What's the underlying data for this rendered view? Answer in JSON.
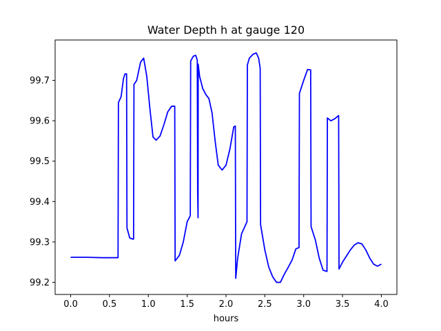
{
  "chart_data": {
    "type": "line",
    "title": "Water Depth h at gauge 120",
    "xlabel": "hours",
    "ylabel": "",
    "xlim": [
      -0.2,
      4.2
    ],
    "ylim": [
      99.17,
      99.8
    ],
    "xticks": [
      0.0,
      0.5,
      1.0,
      1.5,
      2.0,
      2.5,
      3.0,
      3.5,
      4.0
    ],
    "xtick_labels": [
      "0.0",
      "0.5",
      "1.0",
      "1.5",
      "2.0",
      "2.5",
      "3.0",
      "3.5",
      "4.0"
    ],
    "yticks": [
      99.2,
      99.3,
      99.4,
      99.5,
      99.6,
      99.7
    ],
    "ytick_labels": [
      "99.2",
      "99.3",
      "99.4",
      "99.5",
      "99.6",
      "99.7"
    ],
    "grid": false,
    "legend": "none",
    "series": [
      {
        "color": "#0000ff",
        "x": [
          0.0,
          0.2,
          0.4,
          0.61,
          0.615,
          0.65,
          0.68,
          0.7,
          0.72,
          0.725,
          0.76,
          0.8,
          0.81,
          0.815,
          0.85,
          0.9,
          0.94,
          0.98,
          1.02,
          1.06,
          1.1,
          1.15,
          1.2,
          1.25,
          1.3,
          1.34,
          1.345,
          1.4,
          1.45,
          1.5,
          1.54,
          1.545,
          1.58,
          1.61,
          1.63,
          1.635,
          1.64,
          1.642,
          1.66,
          1.7,
          1.74,
          1.78,
          1.82,
          1.86,
          1.9,
          1.95,
          2.0,
          2.05,
          2.1,
          2.12,
          2.125,
          2.15,
          2.2,
          2.27,
          2.275,
          2.3,
          2.35,
          2.39,
          2.42,
          2.44,
          2.445,
          2.5,
          2.55,
          2.6,
          2.65,
          2.7,
          2.75,
          2.8,
          2.85,
          2.9,
          2.94,
          2.945,
          3.0,
          3.05,
          3.09,
          3.095,
          3.15,
          3.2,
          3.25,
          3.3,
          3.305,
          3.35,
          3.4,
          3.45,
          3.455,
          3.5,
          3.55,
          3.6,
          3.65,
          3.7,
          3.75,
          3.8,
          3.85,
          3.9,
          3.95,
          4.0
        ],
        "y": [
          99.262,
          99.262,
          99.261,
          99.261,
          99.645,
          99.66,
          99.705,
          99.716,
          99.716,
          99.335,
          99.31,
          99.307,
          99.307,
          99.69,
          99.7,
          99.745,
          99.755,
          99.71,
          99.63,
          99.56,
          99.552,
          99.562,
          99.59,
          99.622,
          99.636,
          99.636,
          99.253,
          99.267,
          99.3,
          99.35,
          99.365,
          99.748,
          99.76,
          99.762,
          99.75,
          99.42,
          99.36,
          99.74,
          99.71,
          99.68,
          99.665,
          99.655,
          99.62,
          99.55,
          99.49,
          99.478,
          99.49,
          99.53,
          99.585,
          99.587,
          99.21,
          99.26,
          99.32,
          99.35,
          99.738,
          99.755,
          99.765,
          99.768,
          99.755,
          99.73,
          99.343,
          99.28,
          99.238,
          99.214,
          99.2,
          99.2,
          99.22,
          99.237,
          99.255,
          99.283,
          99.286,
          99.668,
          99.7,
          99.727,
          99.726,
          99.338,
          99.305,
          99.26,
          99.23,
          99.227,
          99.607,
          99.6,
          99.605,
          99.613,
          99.233,
          99.25,
          99.265,
          99.28,
          99.292,
          99.298,
          99.295,
          99.28,
          99.26,
          99.245,
          99.24,
          99.245
        ]
      }
    ]
  }
}
